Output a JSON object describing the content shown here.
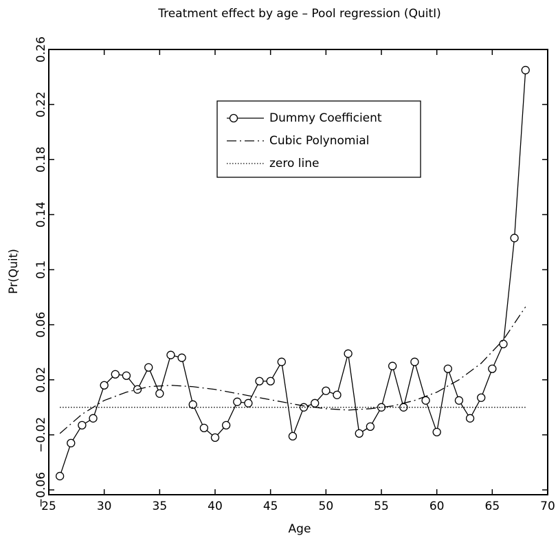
{
  "chart_data": {
    "type": "line",
    "title": "Treatment effect by age – Pool regression (QuitI)",
    "x_label": "Age",
    "y_label": "Pr(Quit)",
    "xlim": [
      25,
      70
    ],
    "xticks": [
      25,
      30,
      35,
      40,
      45,
      50,
      55,
      60,
      65,
      70
    ],
    "ylim": [
      -0.0635,
      0.26
    ],
    "yticks": [
      {
        "value": -0.06,
        "label": "−0.06"
      },
      {
        "value": -0.02,
        "label": "−0.02"
      },
      0.02,
      0.06,
      0.1,
      0.14,
      0.18,
      0.22,
      0.26
    ],
    "legend_position": "upper center",
    "series": [
      {
        "name": "Dummy Coefficient",
        "color": "#000000",
        "dash": "solid",
        "marker": "circle",
        "x": [
          26,
          27,
          28,
          29,
          30,
          31,
          32,
          33,
          34,
          35,
          36,
          37,
          38,
          39,
          40,
          41,
          42,
          43,
          44,
          45,
          46,
          47,
          48,
          49,
          50,
          51,
          52,
          53,
          54,
          55,
          56,
          57,
          58,
          59,
          60,
          61,
          62,
          63,
          64,
          65,
          66,
          67,
          68
        ],
        "values": [
          -0.05,
          -0.026,
          -0.013,
          -0.008,
          0.016,
          0.024,
          0.023,
          0.013,
          0.029,
          0.01,
          0.038,
          0.036,
          0.002,
          -0.015,
          -0.022,
          -0.013,
          0.004,
          0.003,
          0.019,
          0.019,
          0.033,
          -0.021,
          0.0,
          0.003,
          0.012,
          0.009,
          0.039,
          -0.019,
          -0.014,
          0.0,
          0.03,
          0.0,
          0.033,
          0.005,
          -0.018,
          0.028,
          0.005,
          -0.008,
          0.007,
          0.028,
          0.046,
          0.123,
          0.245
        ]
      },
      {
        "name": "Cubic Polynomial",
        "color": "#000000",
        "dash": "dashdot",
        "x": [
          26,
          28,
          30,
          32,
          34,
          36,
          38,
          40,
          42,
          44,
          46,
          48,
          50,
          52,
          54,
          56,
          58,
          60,
          62,
          64,
          66,
          68
        ],
        "values": [
          -0.019,
          -0.005,
          0.005,
          0.011,
          0.015,
          0.016,
          0.015,
          0.013,
          0.01,
          0.007,
          0.004,
          0.001,
          -0.001,
          -0.002,
          -0.001,
          0.001,
          0.005,
          0.011,
          0.02,
          0.032,
          0.049,
          0.073
        ]
      },
      {
        "name": "zero line",
        "color": "#000000",
        "dash": "dotted",
        "x": [
          26,
          68
        ],
        "values": [
          0,
          0
        ]
      }
    ]
  }
}
